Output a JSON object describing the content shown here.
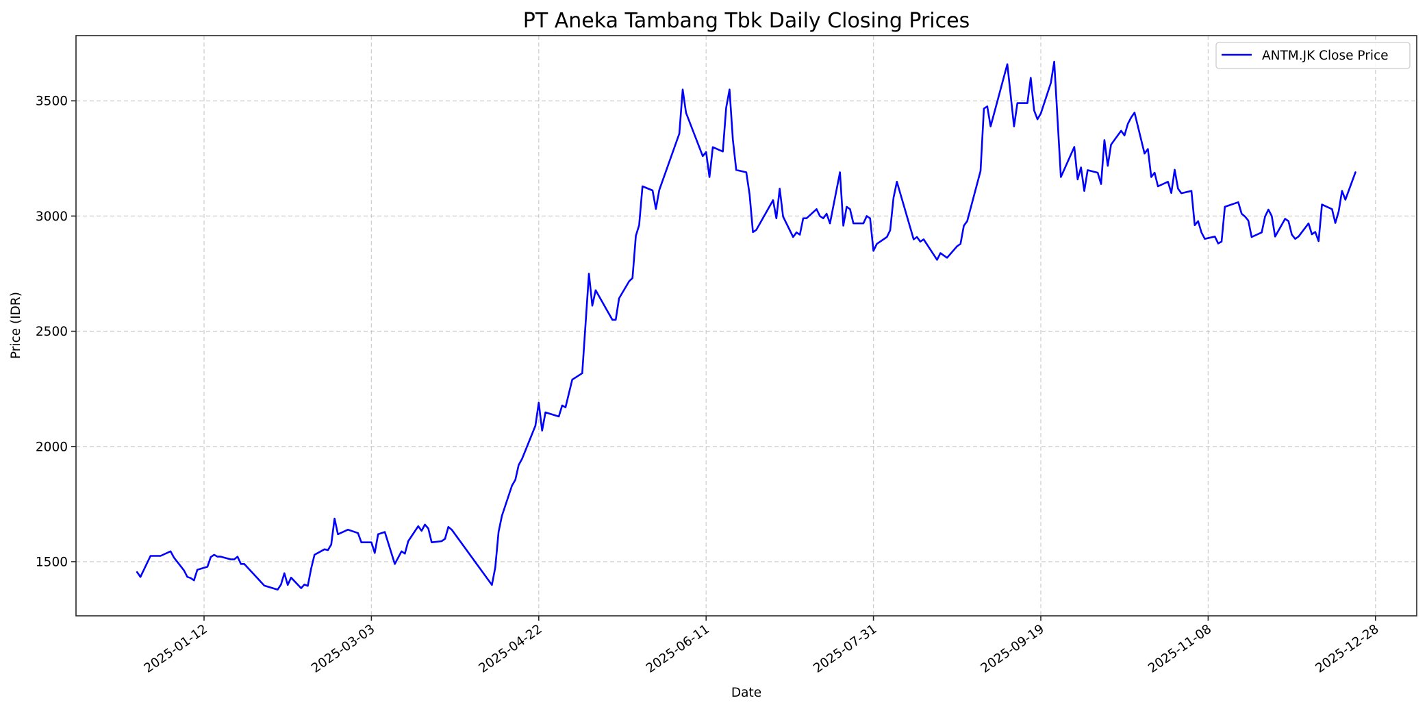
{
  "chart_data": {
    "type": "line",
    "title": "PT Aneka Tambang Tbk Daily Closing Prices",
    "xlabel": "Date",
    "ylabel": "Price (IDR)",
    "ylim": [
      1265,
      3783
    ],
    "xlim": [
      "2024-12-05",
      "2026-01-09"
    ],
    "grid": true,
    "legend_position": "upper right",
    "x_ticks": [
      "2025-01-12",
      "2025-03-03",
      "2025-04-22",
      "2025-06-11",
      "2025-07-31",
      "2025-09-19",
      "2025-11-08",
      "2025-12-28"
    ],
    "y_ticks": [
      1500,
      2000,
      2500,
      3000,
      3500
    ],
    "series": [
      {
        "name": "ANTM.JK Close Price",
        "color": "#0000ff",
        "points": [
          [
            "2024-12-23",
            1455
          ],
          [
            "2024-12-24",
            1434
          ],
          [
            "2024-12-27",
            1525
          ],
          [
            "2024-12-30",
            1525
          ],
          [
            "2025-01-02",
            1545
          ],
          [
            "2025-01-03",
            1518
          ],
          [
            "2025-01-06",
            1462
          ],
          [
            "2025-01-07",
            1434
          ],
          [
            "2025-01-08",
            1429
          ],
          [
            "2025-01-09",
            1419
          ],
          [
            "2025-01-10",
            1465
          ],
          [
            "2025-01-13",
            1478
          ],
          [
            "2025-01-14",
            1520
          ],
          [
            "2025-01-15",
            1530
          ],
          [
            "2025-01-16",
            1522
          ],
          [
            "2025-01-17",
            1522
          ],
          [
            "2025-01-20",
            1510
          ],
          [
            "2025-01-21",
            1510
          ],
          [
            "2025-01-22",
            1522
          ],
          [
            "2025-01-23",
            1490
          ],
          [
            "2025-01-24",
            1490
          ],
          [
            "2025-01-30",
            1396
          ],
          [
            "2025-02-03",
            1379
          ],
          [
            "2025-02-04",
            1401
          ],
          [
            "2025-02-05",
            1450
          ],
          [
            "2025-02-06",
            1399
          ],
          [
            "2025-02-07",
            1431
          ],
          [
            "2025-02-10",
            1385
          ],
          [
            "2025-02-11",
            1401
          ],
          [
            "2025-02-12",
            1395
          ],
          [
            "2025-02-13",
            1470
          ],
          [
            "2025-02-14",
            1530
          ],
          [
            "2025-02-17",
            1554
          ],
          [
            "2025-02-18",
            1550
          ],
          [
            "2025-02-19",
            1574
          ],
          [
            "2025-02-20",
            1687
          ],
          [
            "2025-02-21",
            1619
          ],
          [
            "2025-02-24",
            1639
          ],
          [
            "2025-02-27",
            1624
          ],
          [
            "2025-02-28",
            1584
          ],
          [
            "2025-03-03",
            1584
          ],
          [
            "2025-03-04",
            1538
          ],
          [
            "2025-03-05",
            1619
          ],
          [
            "2025-03-07",
            1629
          ],
          [
            "2025-03-10",
            1490
          ],
          [
            "2025-03-12",
            1545
          ],
          [
            "2025-03-13",
            1535
          ],
          [
            "2025-03-14",
            1589
          ],
          [
            "2025-03-17",
            1654
          ],
          [
            "2025-03-18",
            1634
          ],
          [
            "2025-03-19",
            1661
          ],
          [
            "2025-03-20",
            1644
          ],
          [
            "2025-03-21",
            1584
          ],
          [
            "2025-03-24",
            1589
          ],
          [
            "2025-03-25",
            1599
          ],
          [
            "2025-03-26",
            1651
          ],
          [
            "2025-03-27",
            1639
          ],
          [
            "2025-04-08",
            1399
          ],
          [
            "2025-04-09",
            1475
          ],
          [
            "2025-04-10",
            1629
          ],
          [
            "2025-04-11",
            1699
          ],
          [
            "2025-04-14",
            1830
          ],
          [
            "2025-04-15",
            1855
          ],
          [
            "2025-04-16",
            1920
          ],
          [
            "2025-04-17",
            1946
          ],
          [
            "2025-04-21",
            2090
          ],
          [
            "2025-04-22",
            2190
          ],
          [
            "2025-04-23",
            2069
          ],
          [
            "2025-04-24",
            2148
          ],
          [
            "2025-04-28",
            2130
          ],
          [
            "2025-04-29",
            2178
          ],
          [
            "2025-04-30",
            2170
          ],
          [
            "2025-05-02",
            2290
          ],
          [
            "2025-05-05",
            2318
          ],
          [
            "2025-05-07",
            2750
          ],
          [
            "2025-05-08",
            2611
          ],
          [
            "2025-05-09",
            2678
          ],
          [
            "2025-05-14",
            2550
          ],
          [
            "2025-05-15",
            2550
          ],
          [
            "2025-05-16",
            2643
          ],
          [
            "2025-05-19",
            2717
          ],
          [
            "2025-05-20",
            2731
          ],
          [
            "2025-05-21",
            2914
          ],
          [
            "2025-05-22",
            2960
          ],
          [
            "2025-05-23",
            3129
          ],
          [
            "2025-05-26",
            3111
          ],
          [
            "2025-05-27",
            3031
          ],
          [
            "2025-05-28",
            3113
          ],
          [
            "2025-06-03",
            3358
          ],
          [
            "2025-06-04",
            3549
          ],
          [
            "2025-06-05",
            3448
          ],
          [
            "2025-06-10",
            3260
          ],
          [
            "2025-06-11",
            3278
          ],
          [
            "2025-06-12",
            3169
          ],
          [
            "2025-06-13",
            3299
          ],
          [
            "2025-06-16",
            3280
          ],
          [
            "2025-06-17",
            3470
          ],
          [
            "2025-06-18",
            3549
          ],
          [
            "2025-06-19",
            3331
          ],
          [
            "2025-06-20",
            3200
          ],
          [
            "2025-06-23",
            3190
          ],
          [
            "2025-06-24",
            3094
          ],
          [
            "2025-06-25",
            2930
          ],
          [
            "2025-06-26",
            2940
          ],
          [
            "2025-07-01",
            3069
          ],
          [
            "2025-07-02",
            2990
          ],
          [
            "2025-07-03",
            3119
          ],
          [
            "2025-07-04",
            2998
          ],
          [
            "2025-07-07",
            2909
          ],
          [
            "2025-07-08",
            2929
          ],
          [
            "2025-07-09",
            2919
          ],
          [
            "2025-07-10",
            2990
          ],
          [
            "2025-07-11",
            2990
          ],
          [
            "2025-07-14",
            3030
          ],
          [
            "2025-07-15",
            3000
          ],
          [
            "2025-07-16",
            2990
          ],
          [
            "2025-07-17",
            3010
          ],
          [
            "2025-07-18",
            2968
          ],
          [
            "2025-07-21",
            3190
          ],
          [
            "2025-07-22",
            2958
          ],
          [
            "2025-07-23",
            3040
          ],
          [
            "2025-07-24",
            3030
          ],
          [
            "2025-07-25",
            2968
          ],
          [
            "2025-07-28",
            2968
          ],
          [
            "2025-07-29",
            3000
          ],
          [
            "2025-07-30",
            2990
          ],
          [
            "2025-07-31",
            2849
          ],
          [
            "2025-08-01",
            2879
          ],
          [
            "2025-08-04",
            2909
          ],
          [
            "2025-08-05",
            2938
          ],
          [
            "2025-08-06",
            3079
          ],
          [
            "2025-08-07",
            3149
          ],
          [
            "2025-08-11",
            2949
          ],
          [
            "2025-08-12",
            2899
          ],
          [
            "2025-08-13",
            2909
          ],
          [
            "2025-08-14",
            2889
          ],
          [
            "2025-08-15",
            2899
          ],
          [
            "2025-08-19",
            2810
          ],
          [
            "2025-08-20",
            2839
          ],
          [
            "2025-08-22",
            2819
          ],
          [
            "2025-08-25",
            2869
          ],
          [
            "2025-08-26",
            2879
          ],
          [
            "2025-08-27",
            2958
          ],
          [
            "2025-08-28",
            2978
          ],
          [
            "2025-09-01",
            3196
          ],
          [
            "2025-09-02",
            3466
          ],
          [
            "2025-09-03",
            3476
          ],
          [
            "2025-09-04",
            3389
          ],
          [
            "2025-09-09",
            3659
          ],
          [
            "2025-09-11",
            3389
          ],
          [
            "2025-09-12",
            3490
          ],
          [
            "2025-09-15",
            3490
          ],
          [
            "2025-09-16",
            3600
          ],
          [
            "2025-09-17",
            3459
          ],
          [
            "2025-09-18",
            3420
          ],
          [
            "2025-09-19",
            3445
          ],
          [
            "2025-09-22",
            3578
          ],
          [
            "2025-09-23",
            3670
          ],
          [
            "2025-09-25",
            3169
          ],
          [
            "2025-09-29",
            3300
          ],
          [
            "2025-09-30",
            3159
          ],
          [
            "2025-10-01",
            3211
          ],
          [
            "2025-10-02",
            3109
          ],
          [
            "2025-10-03",
            3199
          ],
          [
            "2025-10-06",
            3188
          ],
          [
            "2025-10-07",
            3139
          ],
          [
            "2025-10-08",
            3330
          ],
          [
            "2025-10-09",
            3218
          ],
          [
            "2025-10-10",
            3310
          ],
          [
            "2025-10-13",
            3370
          ],
          [
            "2025-10-14",
            3350
          ],
          [
            "2025-10-15",
            3400
          ],
          [
            "2025-10-16",
            3428
          ],
          [
            "2025-10-17",
            3449
          ],
          [
            "2025-10-20",
            3271
          ],
          [
            "2025-10-21",
            3291
          ],
          [
            "2025-10-22",
            3169
          ],
          [
            "2025-10-23",
            3188
          ],
          [
            "2025-10-24",
            3129
          ],
          [
            "2025-10-27",
            3149
          ],
          [
            "2025-10-28",
            3100
          ],
          [
            "2025-10-29",
            3201
          ],
          [
            "2025-10-30",
            3119
          ],
          [
            "2025-10-31",
            3099
          ],
          [
            "2025-11-03",
            3109
          ],
          [
            "2025-11-04",
            2960
          ],
          [
            "2025-11-05",
            2978
          ],
          [
            "2025-11-06",
            2929
          ],
          [
            "2025-11-07",
            2901
          ],
          [
            "2025-11-10",
            2911
          ],
          [
            "2025-11-11",
            2881
          ],
          [
            "2025-11-12",
            2889
          ],
          [
            "2025-11-13",
            3040
          ],
          [
            "2025-11-17",
            3060
          ],
          [
            "2025-11-18",
            3010
          ],
          [
            "2025-11-19",
            2998
          ],
          [
            "2025-11-20",
            2980
          ],
          [
            "2025-11-21",
            2909
          ],
          [
            "2025-11-24",
            2929
          ],
          [
            "2025-11-25",
            2998
          ],
          [
            "2025-11-26",
            3028
          ],
          [
            "2025-11-27",
            3000
          ],
          [
            "2025-11-28",
            2911
          ],
          [
            "2025-12-01",
            2988
          ],
          [
            "2025-12-02",
            2978
          ],
          [
            "2025-12-03",
            2919
          ],
          [
            "2025-12-04",
            2901
          ],
          [
            "2025-12-05",
            2911
          ],
          [
            "2025-12-08",
            2968
          ],
          [
            "2025-12-09",
            2921
          ],
          [
            "2025-12-10",
            2931
          ],
          [
            "2025-12-11",
            2891
          ],
          [
            "2025-12-12",
            3050
          ],
          [
            "2025-12-15",
            3030
          ],
          [
            "2025-12-16",
            2970
          ],
          [
            "2025-12-17",
            3020
          ],
          [
            "2025-12-18",
            3109
          ],
          [
            "2025-12-19",
            3071
          ],
          [
            "2025-12-22",
            3190
          ]
        ]
      }
    ]
  },
  "legend": {
    "label": "ANTM.JK Close Price"
  }
}
